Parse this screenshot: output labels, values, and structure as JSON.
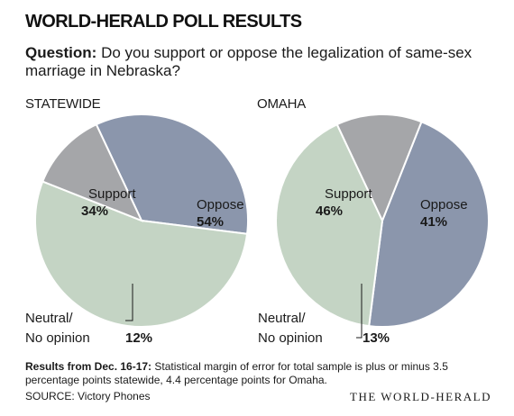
{
  "header": {
    "title": "WORLD-HERALD POLL RESULTS",
    "question_label": "Question:",
    "question_text": "Do you support or oppose the legalization of same-sex marriage in Nebraska?"
  },
  "chart_data": [
    {
      "type": "pie",
      "title": "STATEWIDE",
      "categories": [
        "Support",
        "Oppose",
        "Neutral/\nNo opinion"
      ],
      "values": [
        34,
        54,
        12
      ],
      "labels": [
        "34%",
        "54%",
        "12%"
      ],
      "colors": [
        "#8b96ac",
        "#c4d4c4",
        "#a5a6a9"
      ]
    },
    {
      "type": "pie",
      "title": "OMAHA",
      "categories": [
        "Support",
        "Oppose",
        "Neutral/\nNo opinion"
      ],
      "values": [
        46,
        41,
        13
      ],
      "labels": [
        "46%",
        "41%",
        "13%"
      ],
      "colors": [
        "#8b96ac",
        "#c4d4c4",
        "#a5a6a9"
      ]
    }
  ],
  "footer": {
    "note_label": "Results from Dec. 16-17:",
    "note_text": "Statistical margin of error for total sample is plus or minus 3.5 percentage points statewide, 4.4 percentage points for Omaha.",
    "source": "SOURCE: Victory Phones",
    "brand": "THE WORLD-HERALD"
  }
}
